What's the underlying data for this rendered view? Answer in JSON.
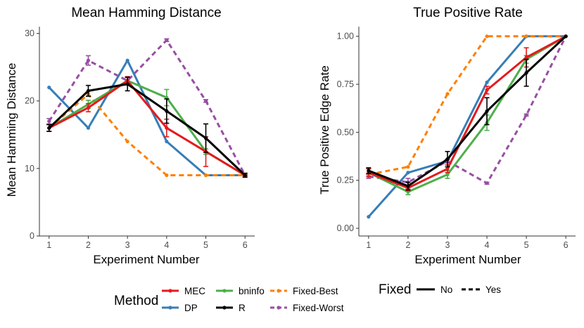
{
  "chart_data": [
    {
      "type": "line",
      "title": "Mean Hamming Distance",
      "xlabel": "Experiment Number",
      "ylabel": "Mean Hamming Distance",
      "x": [
        1,
        2,
        3,
        4,
        5,
        6
      ],
      "xticks": [
        "1",
        "2",
        "3",
        "4",
        "5",
        "6"
      ],
      "ylim": [
        0,
        31
      ],
      "yticks": [
        0,
        10,
        20,
        30
      ],
      "ytick_labels": [
        "0",
        "10",
        "20",
        "30"
      ],
      "grid": false,
      "series": [
        {
          "name": "DP",
          "linetype": "solid",
          "values": [
            22,
            16,
            26,
            14,
            9,
            9
          ],
          "errors": null
        },
        {
          "name": "Fixed-Worst",
          "linetype": "dashed",
          "values": [
            17,
            26,
            23,
            29,
            20,
            9
          ],
          "errors": [
            0.4,
            0.7,
            0.5,
            0.2,
            0.2,
            0.1
          ]
        },
        {
          "name": "Fixed-Best",
          "linetype": "dashed",
          "values": [
            16,
            21,
            14,
            9,
            9,
            9
          ],
          "errors": null
        },
        {
          "name": "bninfo",
          "linetype": "solid",
          "values": [
            16,
            19.5,
            23,
            20.5,
            12.5,
            9
          ],
          "errors": [
            0.5,
            0.6,
            0.6,
            1.2,
            0.4,
            0.1
          ]
        },
        {
          "name": "MEC",
          "linetype": "solid",
          "values": [
            16,
            19,
            23,
            16,
            12.5,
            9
          ],
          "errors": [
            0.5,
            0.6,
            0.6,
            1.3,
            2.2,
            0.1
          ]
        },
        {
          "name": "R",
          "linetype": "solid",
          "values": [
            16,
            21.5,
            22.5,
            18.5,
            14.5,
            9
          ],
          "errors": [
            0.5,
            0.8,
            1.0,
            1.8,
            2.1,
            0.3
          ]
        }
      ]
    },
    {
      "type": "line",
      "title": "True Positive Rate",
      "xlabel": "Experiment Number",
      "ylabel": "True Positive Edge Rate",
      "x": [
        1,
        2,
        3,
        4,
        5,
        6
      ],
      "xticks": [
        "1",
        "2",
        "3",
        "4",
        "5",
        "6"
      ],
      "ylim": [
        -0.04,
        1.05
      ],
      "yticks": [
        0,
        0.25,
        0.5,
        0.75,
        1
      ],
      "ytick_labels": [
        "0.00",
        "0.25",
        "0.50",
        "0.75",
        "1.00"
      ],
      "grid": false,
      "series": [
        {
          "name": "DP",
          "linetype": "solid",
          "values": [
            0.06,
            0.29,
            0.35,
            0.76,
            1.0,
            1.0
          ],
          "errors": null
        },
        {
          "name": "Fixed-Worst",
          "linetype": "dashed",
          "values": [
            0.27,
            0.24,
            0.35,
            0.235,
            0.59,
            1.0
          ],
          "errors": [
            0.01,
            0.02,
            0.01,
            0.005,
            0.005,
            0.0
          ]
        },
        {
          "name": "Fixed-Best",
          "linetype": "dashed",
          "values": [
            0.28,
            0.32,
            0.7,
            1.0,
            1.0,
            1.0
          ],
          "errors": null
        },
        {
          "name": "bninfo",
          "linetype": "solid",
          "values": [
            0.29,
            0.19,
            0.28,
            0.55,
            0.88,
            1.0
          ],
          "errors": [
            0.02,
            0.015,
            0.02,
            0.04,
            0.02,
            0.0
          ]
        },
        {
          "name": "MEC",
          "linetype": "solid",
          "values": [
            0.29,
            0.21,
            0.31,
            0.72,
            0.89,
            1.0
          ],
          "errors": [
            0.02,
            0.015,
            0.02,
            0.02,
            0.05,
            0.0
          ]
        },
        {
          "name": "R",
          "linetype": "solid",
          "values": [
            0.3,
            0.22,
            0.36,
            0.61,
            0.81,
            1.0
          ],
          "errors": [
            0.015,
            0.02,
            0.04,
            0.07,
            0.07,
            0.0
          ]
        }
      ]
    }
  ],
  "series_colors": {
    "MEC": "#E41A1C",
    "DP": "#377EB8",
    "bninfo": "#4DAF4A",
    "R": "#000000",
    "Fixed-Best": "#FF7F00",
    "Fixed-Worst": "#984EA3"
  },
  "legend": {
    "method_title": "Method",
    "method_items": [
      "MEC",
      "DP",
      "bninfo",
      "R",
      "Fixed-Best",
      "Fixed-Worst"
    ],
    "fixed_title": "Fixed",
    "fixed_items": [
      {
        "label": "No",
        "linetype": "solid"
      },
      {
        "label": "Yes",
        "linetype": "dashed"
      }
    ]
  }
}
